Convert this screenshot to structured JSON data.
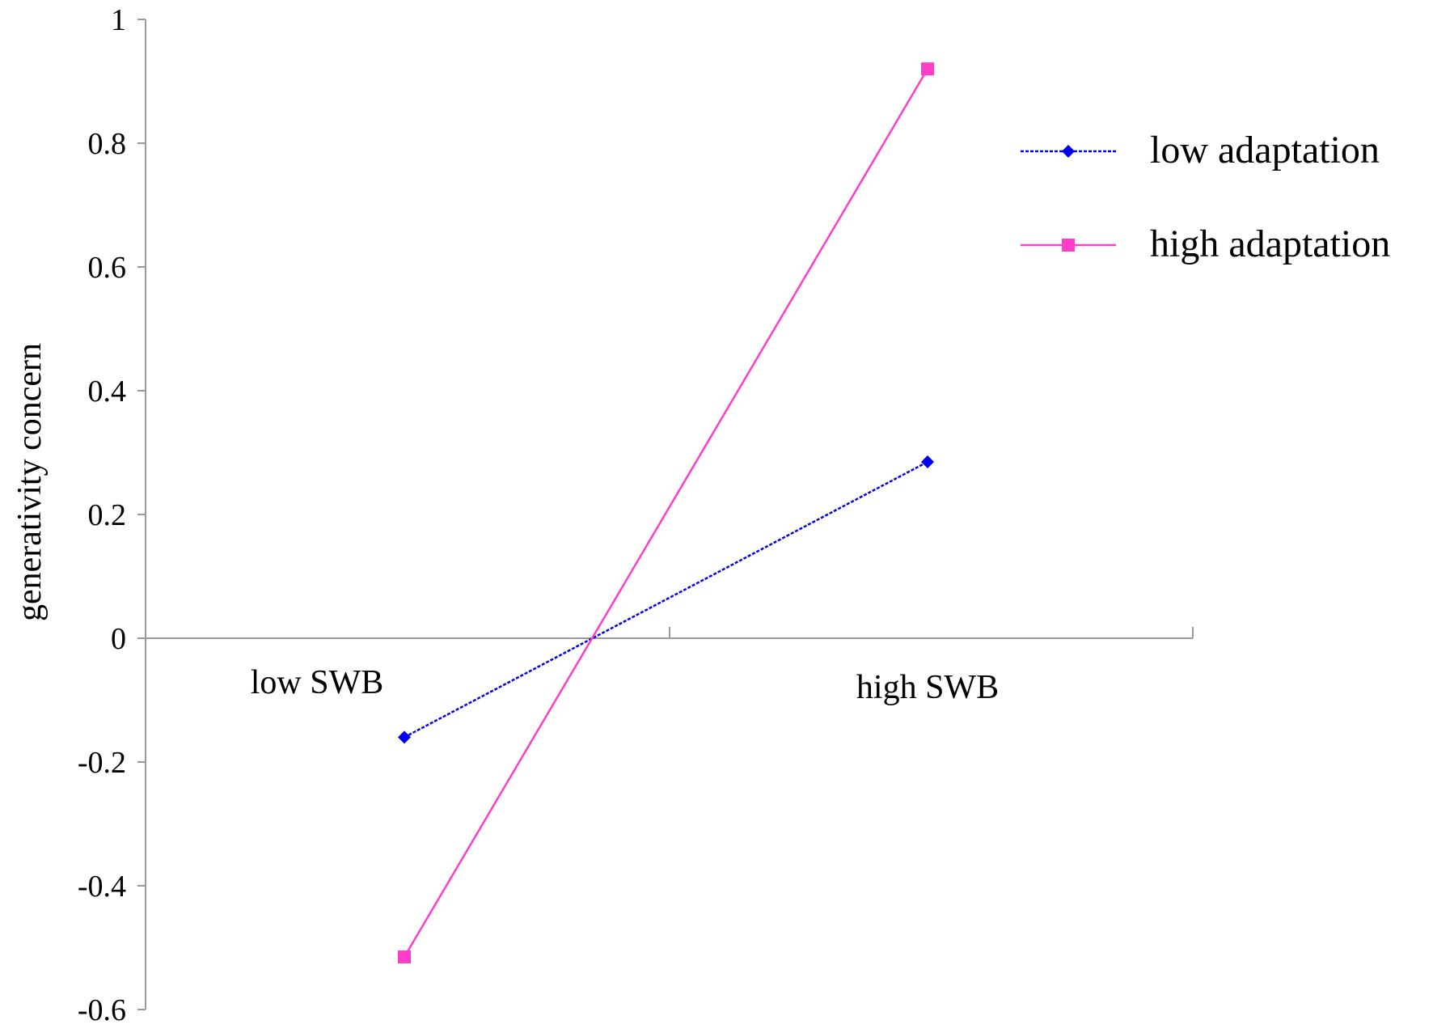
{
  "chart_data": {
    "type": "line",
    "categories": [
      "low SWB",
      "high SWB"
    ],
    "ylabel": "generativity concern",
    "xlabel": "",
    "ylim": [
      -0.6,
      1
    ],
    "yticks": [
      1,
      0.8,
      0.6,
      0.4,
      0.2,
      0,
      -0.2,
      -0.4,
      -0.6
    ],
    "ytick_labels": [
      "1",
      "0.8",
      "0.6",
      "0.4",
      "0.2",
      "0",
      "-0.2",
      "-0.4",
      "-0.6"
    ],
    "grid": false,
    "legend_position": "right",
    "series": [
      {
        "name": "low adaptation",
        "values": [
          -0.16,
          0.285
        ],
        "color": "#0000ee",
        "marker": "diamond",
        "line_style": "dotted"
      },
      {
        "name": "high adaptation",
        "values": [
          -0.515,
          0.92
        ],
        "color": "#ff3ec8",
        "marker": "square",
        "line_style": "solid"
      }
    ]
  }
}
